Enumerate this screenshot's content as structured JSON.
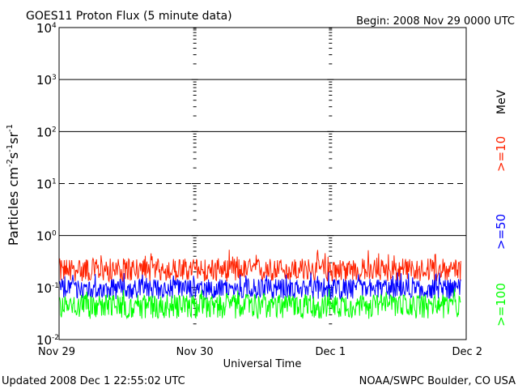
{
  "chart_data": {
    "type": "line",
    "title": "GOES11 Proton Flux (5 minute data)",
    "begin_label": "Begin: 2008 Nov 29 0000 UTC",
    "xlabel": "Universal Time",
    "ylabel": "Particles cm",
    "ylabel_exp1": "-2",
    "ylabel_mid1": "s",
    "ylabel_exp2": "-1",
    "ylabel_mid2": "sr",
    "ylabel_exp3": "-1",
    "y_scale": "log",
    "ylim": [
      0.01,
      10000
    ],
    "y_ticks": [
      {
        "base": "10",
        "exp": "-2",
        "value": 0.01
      },
      {
        "base": "10",
        "exp": "-1",
        "value": 0.1
      },
      {
        "base": "10",
        "exp": "0",
        "value": 1
      },
      {
        "base": "10",
        "exp": "1",
        "value": 10
      },
      {
        "base": "10",
        "exp": "2",
        "value": 100
      },
      {
        "base": "10",
        "exp": "3",
        "value": 1000
      },
      {
        "base": "10",
        "exp": "4",
        "value": 10000
      }
    ],
    "x_ticks": [
      "Nov 29",
      "Nov 30",
      "Dec 1",
      "Dec 2"
    ],
    "xlim_days": [
      0,
      3
    ],
    "unit_label": "MeV",
    "series": [
      {
        "name": ">=10",
        "color": "#ff2200",
        "typical": 0.22,
        "low": 0.13,
        "high": 0.55
      },
      {
        "name": ">=50",
        "color": "#0000ff",
        "typical": 0.1,
        "low": 0.06,
        "high": 0.2
      },
      {
        "name": ">=100",
        "color": "#00ff00",
        "typical": 0.05,
        "low": 0.025,
        "high": 0.1
      }
    ],
    "grid": {
      "solid_lines": [
        1,
        100,
        1000
      ],
      "dashed_lines": [
        10
      ]
    },
    "footer_left": "Updated 2008 Dec  1 22:55:02 UTC",
    "footer_right": "NOAA/SWPC Boulder, CO USA"
  }
}
